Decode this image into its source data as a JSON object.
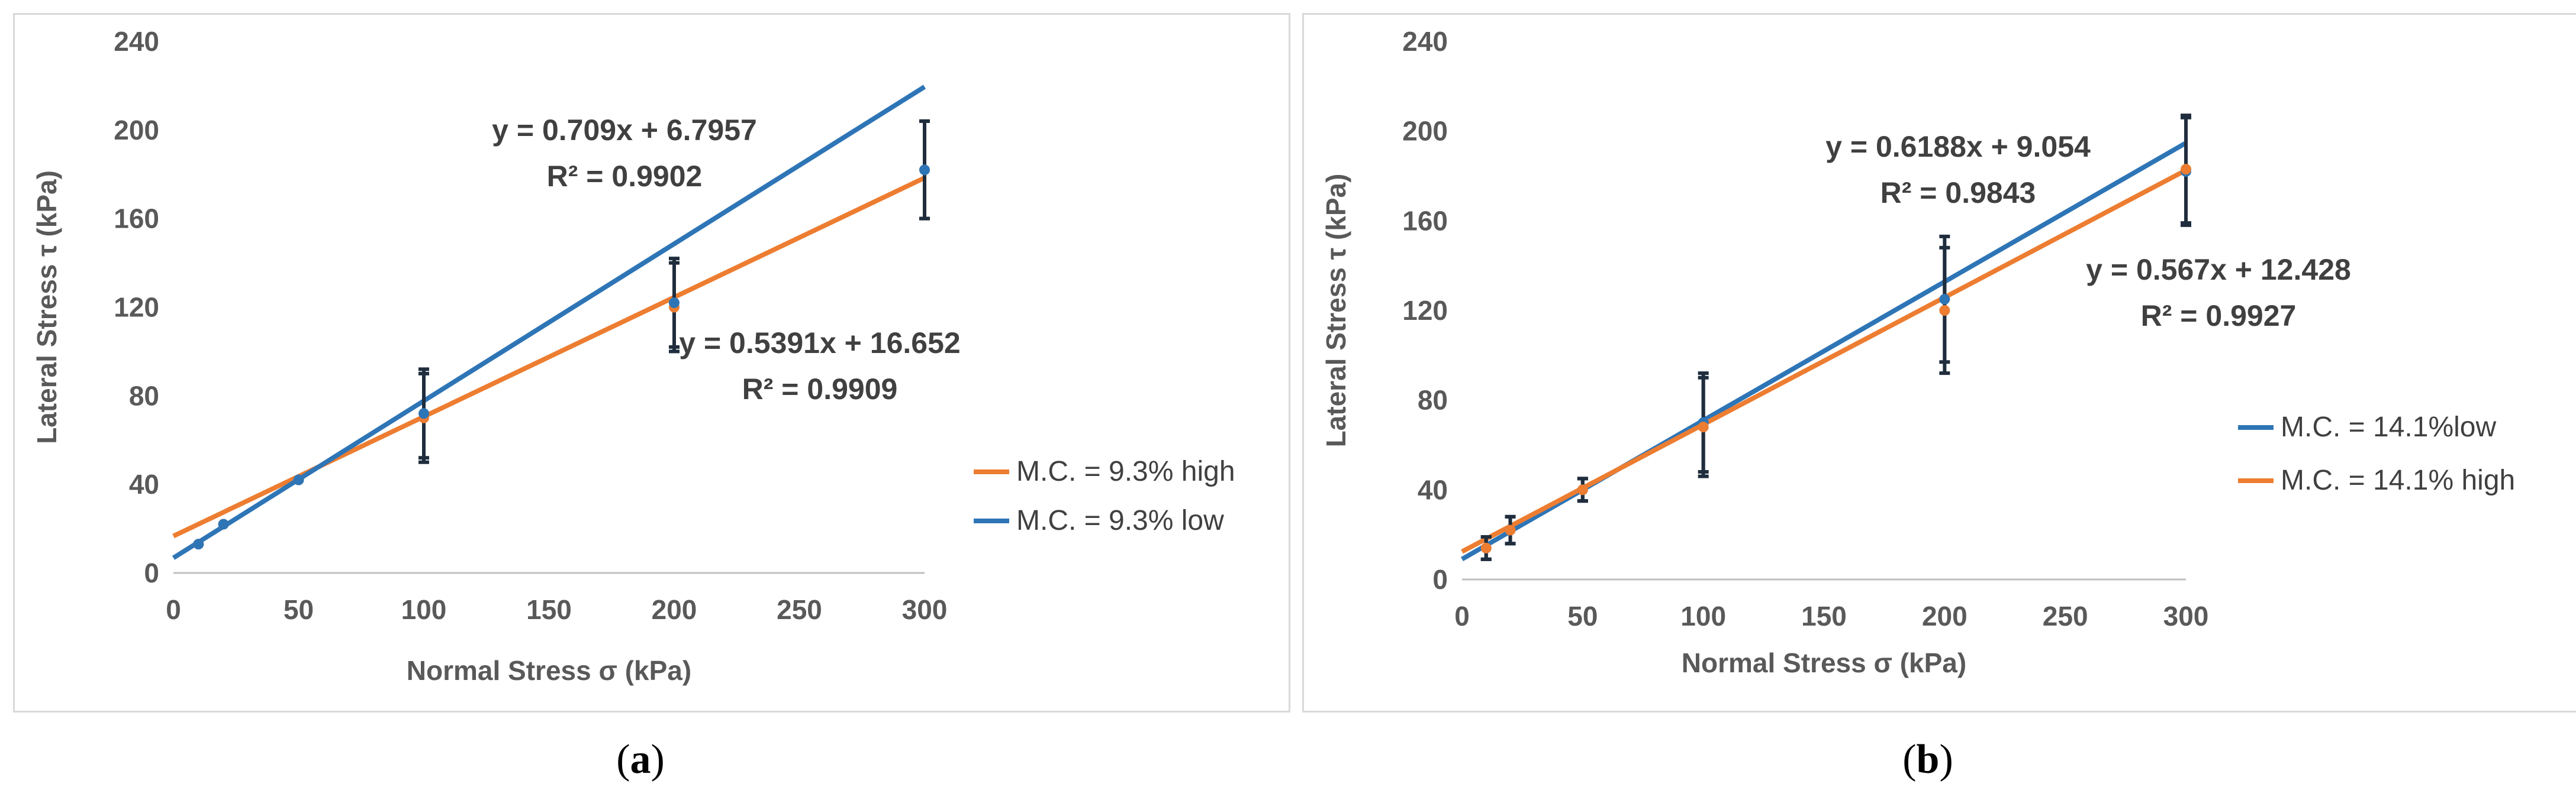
{
  "chart_data": [
    {
      "id": "a",
      "type": "scatter",
      "caption_letter": "a",
      "xlabel": "Normal Stress σ (kPa)",
      "ylabel": "Lateral Stress τ (kPa)",
      "xlim": [
        0,
        300
      ],
      "ylim": [
        0,
        240
      ],
      "xticks": [
        0,
        50,
        100,
        150,
        200,
        250,
        300
      ],
      "yticks": [
        0,
        40,
        80,
        120,
        160,
        200,
        240
      ],
      "grid": false,
      "legend_position": "right",
      "series": [
        {
          "name": "M.C. = 9.3% high",
          "color": "#ED7D31",
          "x": [
            10,
            20,
            50,
            100,
            200,
            300
          ],
          "y": [
            13,
            22,
            42,
            70,
            120,
            182
          ],
          "yerr": [
            0,
            0,
            0,
            20,
            20,
            22
          ],
          "trend": {
            "slope": 0.5391,
            "intercept": 16.652
          },
          "equation": "y = 0.5391x + 16.652",
          "r2": "R² = 0.9909"
        },
        {
          "name": "M.C. = 9.3% low",
          "color": "#2E75B6",
          "x": [
            10,
            20,
            50,
            100,
            200,
            300
          ],
          "y": [
            13,
            22,
            42,
            72,
            122,
            182
          ],
          "yerr": [
            0,
            0,
            0,
            20,
            20,
            22
          ],
          "trend": {
            "slope": 0.709,
            "intercept": 6.7957
          },
          "equation": "y = 0.709x + 6.7957",
          "r2": "R² = 0.9902"
        }
      ]
    },
    {
      "id": "b",
      "type": "scatter",
      "caption_letter": "b",
      "xlabel": "Normal Stress σ (kPa)",
      "ylabel": "Lateral Stress τ (kPa)",
      "xlim": [
        0,
        300
      ],
      "ylim": [
        0,
        240
      ],
      "xticks": [
        0,
        50,
        100,
        150,
        200,
        250,
        300
      ],
      "yticks": [
        0,
        40,
        80,
        120,
        160,
        200,
        240
      ],
      "grid": false,
      "legend_position": "right",
      "series": [
        {
          "name": "M.C. = 14.1%low",
          "color": "#2E75B6",
          "x": [
            10,
            20,
            50,
            100,
            200,
            300
          ],
          "y": [
            14,
            22,
            40,
            70,
            125,
            182
          ],
          "yerr": [
            5,
            6,
            5,
            22,
            28,
            24
          ],
          "trend": {
            "slope": 0.6188,
            "intercept": 9.054
          },
          "equation": "y = 0.6188x + 9.054",
          "r2": "R² = 0.9843"
        },
        {
          "name": "M.C. = 14.1% high",
          "color": "#ED7D31",
          "x": [
            10,
            20,
            50,
            100,
            200,
            300
          ],
          "y": [
            14,
            22,
            40,
            68,
            120,
            183
          ],
          "yerr": [
            5,
            6,
            5,
            22,
            28,
            24
          ],
          "trend": {
            "slope": 0.567,
            "intercept": 12.428
          },
          "equation": "y = 0.567x + 12.428",
          "r2": "R² = 0.9927"
        }
      ]
    }
  ]
}
